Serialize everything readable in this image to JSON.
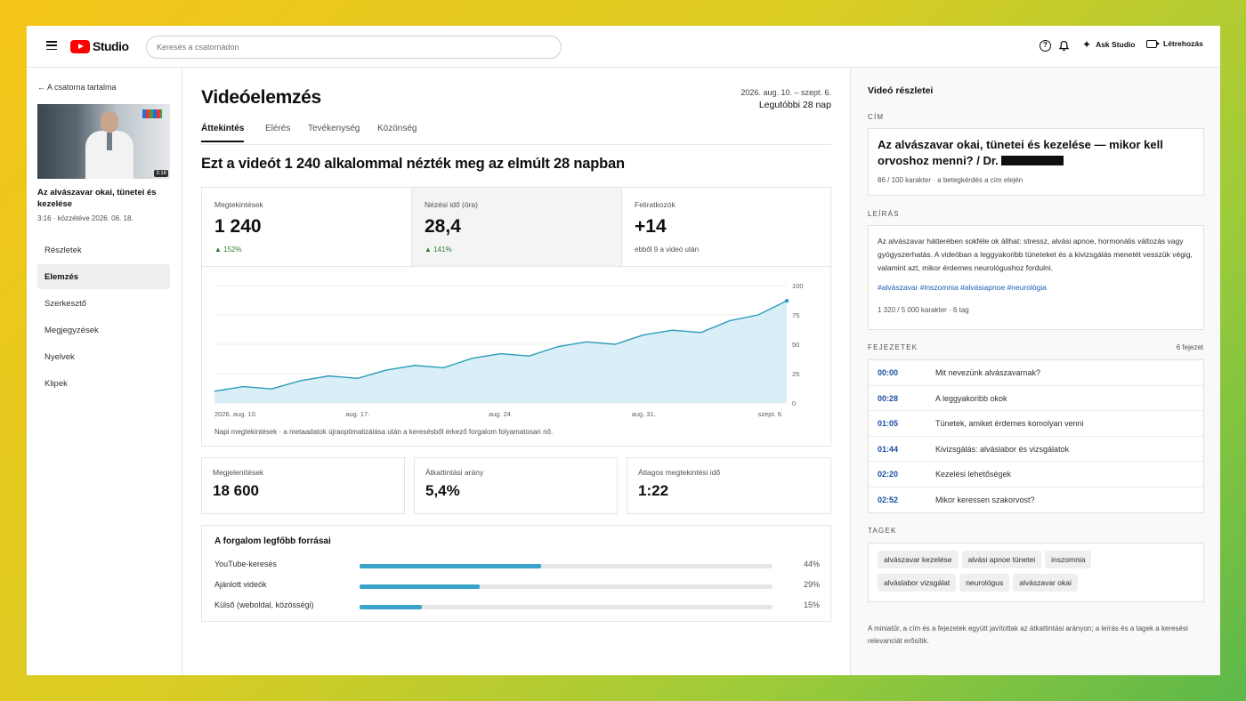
{
  "header": {
    "logo_text": "Studio",
    "search_placeholder": "Keresés a csatornádon",
    "ask_label": "Ask Studio",
    "create_label": "Létrehozás"
  },
  "sidebar": {
    "back_label": "← A csatorna tartalma",
    "video_title": "Az alvászavar okai, tünetei és kezelése",
    "video_meta": "3:16 · közzétéve 2026. 06. 18.",
    "thumb_duration": "3:16",
    "items": [
      {
        "label": "Részletek"
      },
      {
        "label": "Elemzés"
      },
      {
        "label": "Szerkesztő"
      },
      {
        "label": "Megjegyzések"
      },
      {
        "label": "Nyelvek"
      },
      {
        "label": "Klipek"
      }
    ],
    "active_index": 1
  },
  "main": {
    "title": "Videóelemzés",
    "date_range": "2026. aug. 10. – szept. 6.",
    "period": "Legutóbbi 28 nap",
    "tabs": [
      {
        "label": "Áttekintés"
      },
      {
        "label": "Elérés"
      },
      {
        "label": "Tevékenység"
      },
      {
        "label": "Közönség"
      }
    ],
    "headline": "Ezt a videót 1 240 alkalommal nézték meg az elmúlt 28 napban",
    "kpis": [
      {
        "label": "Megtekintések",
        "value": "1 240",
        "sub": "▲ 152%"
      },
      {
        "label": "Nézési idő (óra)",
        "value": "28,4",
        "sub": "▲ 141%"
      },
      {
        "label": "Feliratkozók",
        "value": "+14",
        "sub": "ebből 9 a videó után"
      }
    ],
    "chart_caption": "Napi megtekintések · a metaadatok újraoptimalizálása után a keresésből érkező forgalom folyamatosan nő.",
    "kpis2": [
      {
        "label": "Megjelenítések",
        "value": "18 600"
      },
      {
        "label": "Átkattintási arány",
        "value": "5,4%"
      },
      {
        "label": "Átlagos megtekintési idő",
        "value": "1:22"
      }
    ],
    "traffic": {
      "title": "A forgalom legfőbb forrásai",
      "rows": [
        {
          "name": "YouTube-keresés",
          "pct_label": "44%",
          "pct": 44
        },
        {
          "name": "Ajánlott videók",
          "pct_label": "29%",
          "pct": 29
        },
        {
          "name": "Külső (weboldal, közösségi)",
          "pct_label": "15%",
          "pct": 15
        }
      ]
    }
  },
  "chart_data": {
    "type": "area",
    "x_ticks": [
      "2026. aug. 10.",
      "aug. 17.",
      "aug. 24.",
      "aug. 31.",
      "szept. 6."
    ],
    "y_ticks": [
      "100",
      "75",
      "50",
      "25",
      "0"
    ],
    "ylim": [
      0,
      100
    ],
    "series": [
      {
        "values": [
          10,
          14,
          12,
          19,
          23,
          21,
          28,
          32,
          30,
          38,
          42,
          40,
          48,
          52,
          50,
          58,
          62,
          60,
          70,
          75,
          87
        ]
      }
    ],
    "color": "#2a9db8"
  },
  "right": {
    "title": "Videó részletei",
    "title_section": "CÍM",
    "video_title": "Az alvászavar okai, tünetei és kezelése — mikor kell orvoshoz menni? / Dr.",
    "title_count": "86 / 100 karakter · a betegkérdés a cím elején",
    "desc_section": "LEÍRÁS",
    "description": "Az alvászavar hátterében sokféle ok állhat: stressz, alvási apnoe, hormonális változás vagy gyógyszerhatás. A videóban a leggyakoribb tüneteket és a kivizsgálás menetét vesszük végig, valamint azt, mikor érdemes neurológushoz fordulni.",
    "hashtags": "#alvászavar #inszomnia #alvásiapnoe #neurológia",
    "desc_count": "1 320 / 5 000 karakter · 6 tag",
    "chapters_section": "FEJEZETEK",
    "chapters_count": "6 fejezet",
    "chapters": [
      {
        "time": "00:00",
        "title": "Mit nevezünk alvászavarnak?"
      },
      {
        "time": "00:28",
        "title": "A leggyakoribb okok"
      },
      {
        "time": "01:05",
        "title": "Tünetek, amiket érdemes komolyan venni"
      },
      {
        "time": "01:44",
        "title": "Kivizsgálás: alváslabor és vizsgálatok"
      },
      {
        "time": "02:20",
        "title": "Kezelési lehetőségek"
      },
      {
        "time": "02:52",
        "title": "Mikor keressen szakorvost?"
      }
    ],
    "tags_section": "TAGEK",
    "tags": [
      "alvászavar kezelése",
      "alvási apnoe tünetei",
      "inszomnia",
      "alváslabor vizsgálat",
      "neurológus",
      "alvászavar okai"
    ],
    "note": "A miniatűr, a cím és a fejezetek együtt javítottak az átkattintási arányon; a leírás és a tagek a keresési relevanciát erősítik."
  }
}
